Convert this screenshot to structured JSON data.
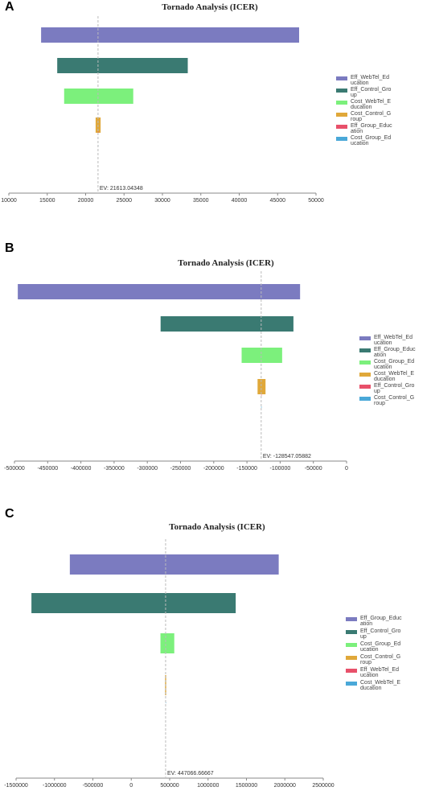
{
  "chart_data": [
    {
      "panel": "A",
      "type": "bar",
      "orientation": "horizontal-tornado",
      "title": "Tornado Analysis (ICER)",
      "ev_label": "EV: 21613.04348",
      "ev": 21613.04348,
      "xlim": [
        10000,
        50000
      ],
      "xticks": [
        10000,
        15000,
        20000,
        25000,
        30000,
        35000,
        40000,
        45000,
        50000
      ],
      "xtick_labels": [
        "10000",
        "15000",
        "20000",
        "25000",
        "30000",
        "35000",
        "40000",
        "45000",
        "50000"
      ],
      "legend": [
        {
          "name": "Eff_WebTel_Education",
          "lines": [
            "Eff_WebTel_Ed",
            "ucation"
          ],
          "color": "#7b7bc0"
        },
        {
          "name": "Eff_Control_Group",
          "lines": [
            "Eff_Control_Gro",
            "up"
          ],
          "color": "#3a7a72"
        },
        {
          "name": "Cost_WebTel_Education",
          "lines": [
            "Cost_WebTel_E",
            "ducation"
          ],
          "color": "#7cf07c"
        },
        {
          "name": "Cost_Control_Group",
          "lines": [
            "Cost_Control_G",
            "roup"
          ],
          "color": "#e0a83a"
        },
        {
          "name": "Eff_Group_Education",
          "lines": [
            "Eff_Group_Educ",
            "ation"
          ],
          "color": "#e8506a"
        },
        {
          "name": "Cost_Group_Education",
          "lines": [
            "Cost_Group_Ed",
            "ucation"
          ],
          "color": "#4aa8d8"
        }
      ],
      "bars": [
        {
          "name": "Eff_WebTel_Education",
          "low": 14200,
          "high": 47800,
          "color": "#7b7bc0"
        },
        {
          "name": "Eff_Control_Group",
          "low": 16300,
          "high": 33300,
          "color": "#3a7a72"
        },
        {
          "name": "Cost_WebTel_Education",
          "low": 17200,
          "high": 26200,
          "color": "#7cf07c"
        },
        {
          "name": "Cost_Control_Group",
          "low": 21300,
          "high": 21950,
          "color": "#e0a83a"
        },
        {
          "name": "Eff_Group_Education",
          "low": 21613,
          "high": 21613,
          "color": "#e8506a"
        },
        {
          "name": "Cost_Group_Education",
          "low": 21613,
          "high": 21613,
          "color": "#4aa8d8"
        }
      ]
    },
    {
      "panel": "B",
      "type": "bar",
      "orientation": "horizontal-tornado",
      "title": "Tornado Analysis (ICER)",
      "ev_label": "EV: -128547.05882",
      "ev": -128547.05882,
      "xlim": [
        -500000,
        0
      ],
      "xticks": [
        -500000,
        -450000,
        -400000,
        -350000,
        -300000,
        -250000,
        -200000,
        -150000,
        -100000,
        -50000,
        0
      ],
      "xtick_labels": [
        "-500000",
        "-450000",
        "-400000",
        "-350000",
        "-300000",
        "-250000",
        "-200000",
        "-150000",
        "-100000",
        "-50000",
        "0"
      ],
      "legend": [
        {
          "name": "Eff_WebTel_Education",
          "lines": [
            "Eff_WebTel_Ed",
            "ucation"
          ],
          "color": "#7b7bc0"
        },
        {
          "name": "Eff_Group_Education",
          "lines": [
            "Eff_Group_Educ",
            "ation"
          ],
          "color": "#3a7a72"
        },
        {
          "name": "Cost_Group_Education",
          "lines": [
            "Cost_Group_Ed",
            "ucation"
          ],
          "color": "#7cf07c"
        },
        {
          "name": "Cost_WebTel_Education",
          "lines": [
            "Cost_WebTel_E",
            "ducation"
          ],
          "color": "#e0a83a"
        },
        {
          "name": "Eff_Control_Group",
          "lines": [
            "Eff_Control_Gro",
            "up"
          ],
          "color": "#e8506a"
        },
        {
          "name": "Cost_Control_Group",
          "lines": [
            "Cost_Control_G",
            "roup"
          ],
          "color": "#4aa8d8"
        }
      ],
      "bars": [
        {
          "name": "Eff_WebTel_Education",
          "low": -495000,
          "high": -70000,
          "color": "#7b7bc0"
        },
        {
          "name": "Eff_Group_Education",
          "low": -280000,
          "high": -80000,
          "color": "#3a7a72"
        },
        {
          "name": "Cost_Group_Education",
          "low": -158000,
          "high": -97000,
          "color": "#7cf07c"
        },
        {
          "name": "Cost_WebTel_Education",
          "low": -134000,
          "high": -122000,
          "color": "#e0a83a"
        },
        {
          "name": "Eff_Control_Group",
          "low": -128547,
          "high": -128547,
          "color": "#e8506a"
        },
        {
          "name": "Cost_Control_Group",
          "low": -128547,
          "high": -128547,
          "color": "#4aa8d8"
        }
      ]
    },
    {
      "panel": "C",
      "type": "bar",
      "orientation": "horizontal-tornado",
      "title": "Tornado Analysis (ICER)",
      "ev_label": "EV: 447066.66667",
      "ev": 447066.66667,
      "xlim": [
        -1500000,
        2500000
      ],
      "xticks": [
        -1500000,
        -1000000,
        -500000,
        0,
        500000,
        1000000,
        1500000,
        2000000,
        2500000
      ],
      "xtick_labels": [
        "-1500000",
        "-1000000",
        "-500000",
        "0",
        "500000",
        "1000000",
        "1500000",
        "2000000",
        "2500000"
      ],
      "legend": [
        {
          "name": "Eff_Group_Education",
          "lines": [
            "Eff_Group_Educ",
            "ation"
          ],
          "color": "#7b7bc0"
        },
        {
          "name": "Eff_Control_Group",
          "lines": [
            "Eff_Control_Gro",
            "up"
          ],
          "color": "#3a7a72"
        },
        {
          "name": "Cost_Group_Education",
          "lines": [
            "Cost_Group_Ed",
            "ucation"
          ],
          "color": "#7cf07c"
        },
        {
          "name": "Cost_Control_Group",
          "lines": [
            "Cost_Control_G",
            "roup"
          ],
          "color": "#e0a83a"
        },
        {
          "name": "Eff_WebTel_Education",
          "lines": [
            "Eff_WebTel_Ed",
            "ucation"
          ],
          "color": "#e8506a"
        },
        {
          "name": "Cost_WebTel_Education",
          "lines": [
            "Cost_WebTel_E",
            "ducation"
          ],
          "color": "#4aa8d8"
        }
      ],
      "bars": [
        {
          "name": "Eff_Group_Education",
          "low": -800000,
          "high": 1920000,
          "color": "#7b7bc0"
        },
        {
          "name": "Eff_Control_Group",
          "low": -1300000,
          "high": 1360000,
          "color": "#3a7a72"
        },
        {
          "name": "Cost_Group_Education",
          "low": 380000,
          "high": 560000,
          "color": "#7cf07c"
        },
        {
          "name": "Cost_Control_Group",
          "low": 440000,
          "high": 455000,
          "color": "#e0a83a"
        },
        {
          "name": "Eff_WebTel_Education",
          "low": 447066,
          "high": 447066,
          "color": "#e8506a"
        },
        {
          "name": "Cost_WebTel_Education",
          "low": 447066,
          "high": 447066,
          "color": "#4aa8d8"
        }
      ]
    }
  ]
}
